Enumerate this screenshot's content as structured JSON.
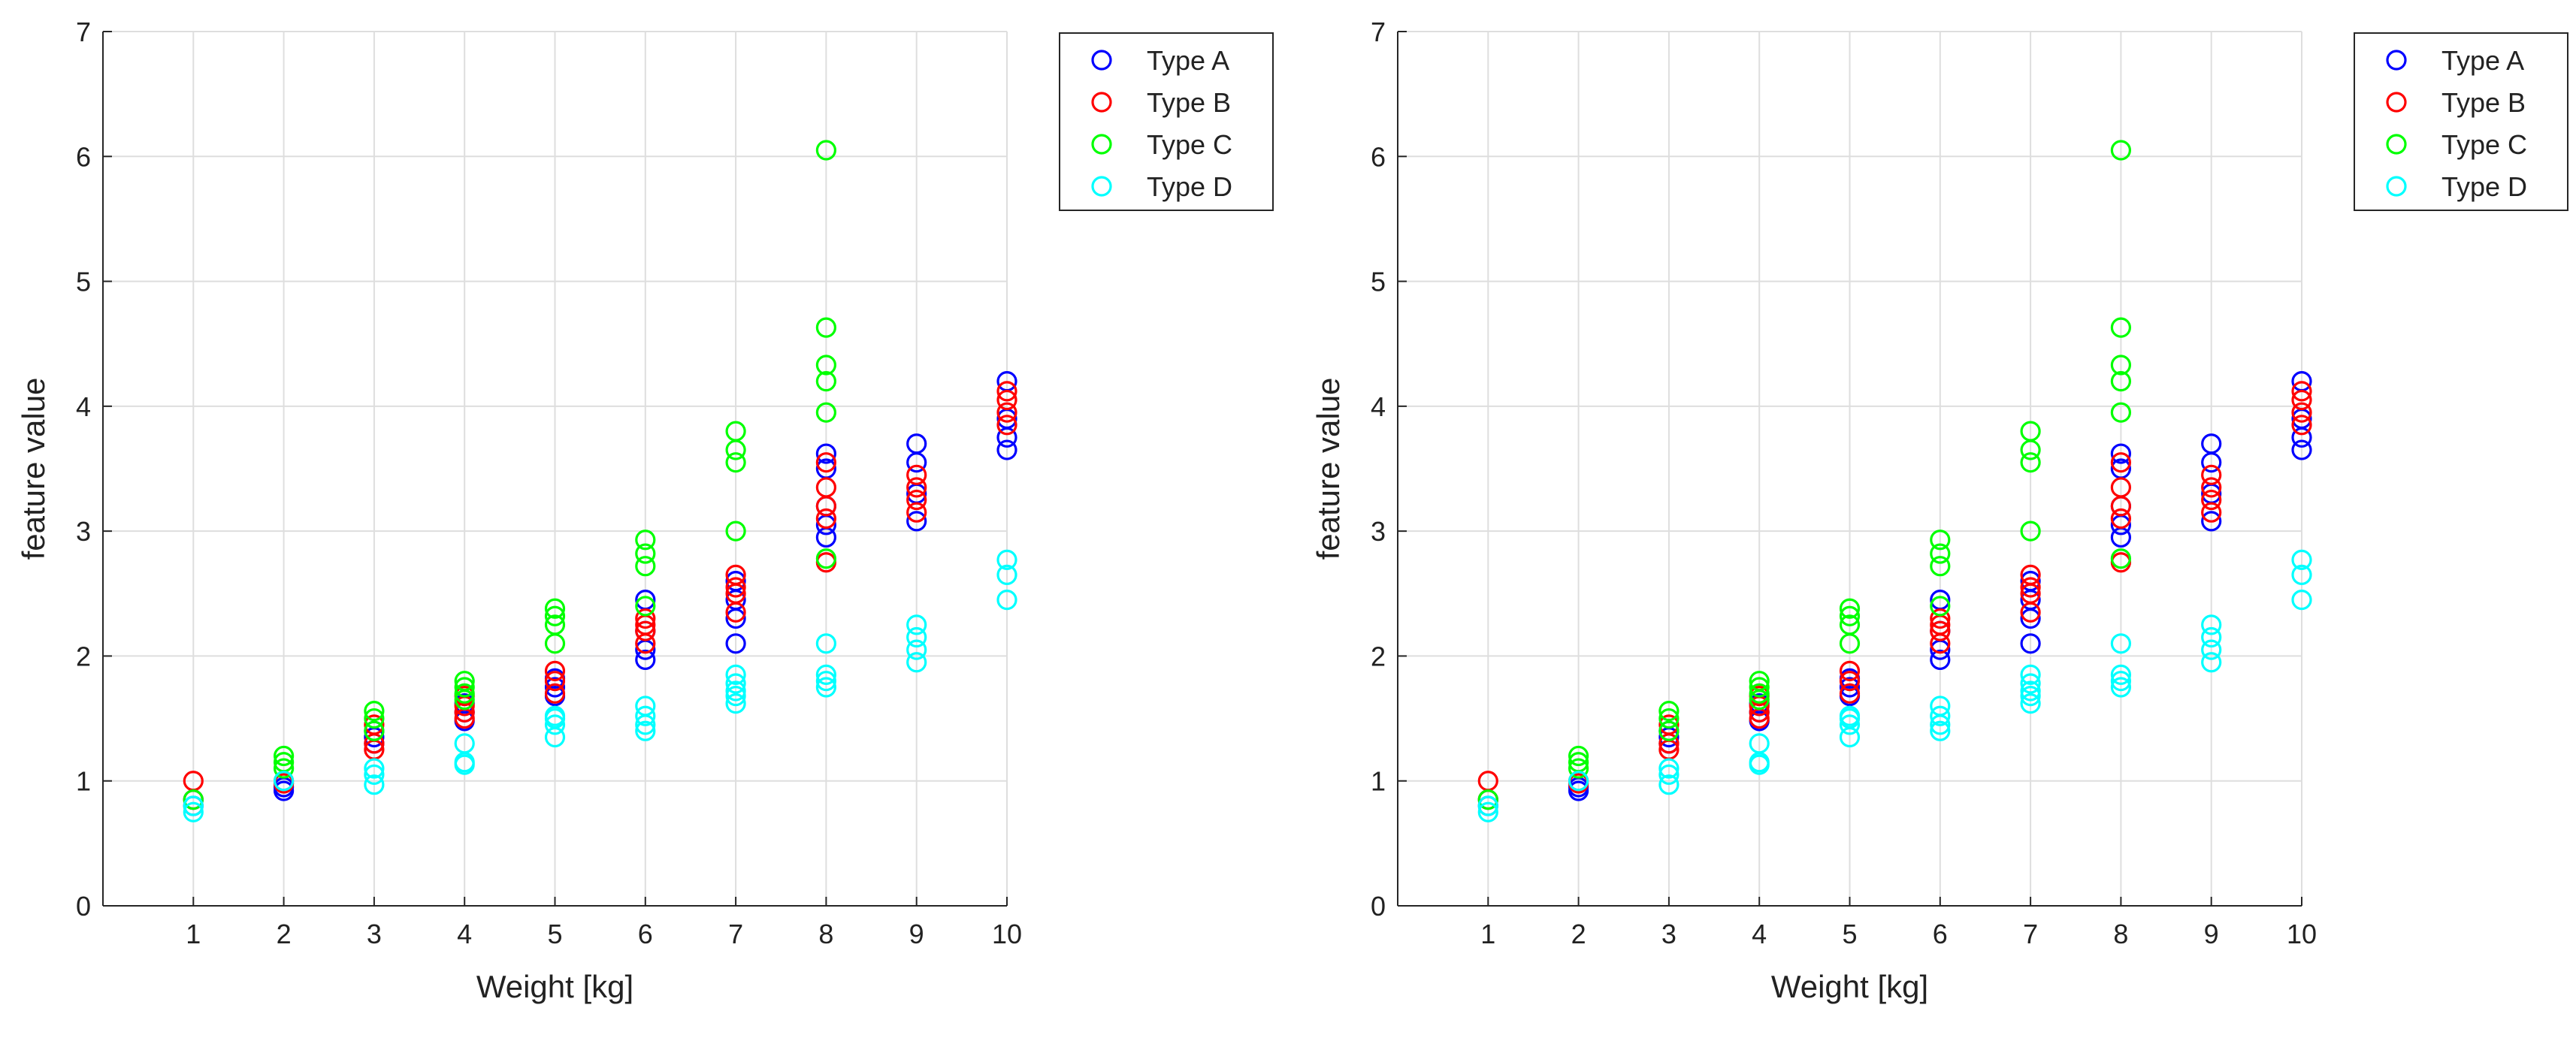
{
  "chart_data": [
    {
      "type": "scatter",
      "title": "",
      "xlabel": "Weight [kg]",
      "ylabel": "feature value",
      "xlim": [
        0,
        10
      ],
      "ylim": [
        0,
        7
      ],
      "xticks": [
        "1",
        "2",
        "3",
        "4",
        "5",
        "6",
        "7",
        "8",
        "9",
        "10"
      ],
      "yticks": [
        "0",
        "1",
        "2",
        "3",
        "4",
        "5",
        "6",
        "7"
      ],
      "grid": true,
      "legend_position": "top-right",
      "marker": "open-circle",
      "series": [
        {
          "name": "Type A",
          "color": "#0000ff",
          "x": [
            1,
            1,
            2,
            2,
            3,
            3,
            3,
            4,
            4,
            4,
            5,
            5,
            5,
            6,
            6,
            6,
            6,
            7,
            7,
            7,
            7,
            8,
            8,
            8,
            8,
            8,
            9,
            9,
            9,
            9,
            10,
            10,
            10,
            10
          ],
          "y": [
            0.85,
            0.8,
            0.95,
            0.92,
            1.3,
            1.35,
            1.4,
            1.48,
            1.55,
            1.62,
            1.68,
            1.75,
            1.82,
            1.97,
            2.05,
            2.2,
            2.45,
            2.1,
            2.3,
            2.45,
            2.6,
            2.95,
            3.05,
            3.2,
            3.5,
            3.62,
            3.08,
            3.3,
            3.55,
            3.7,
            3.65,
            3.75,
            3.9,
            4.2
          ]
        },
        {
          "name": "Type B",
          "color": "#ff0000",
          "x": [
            1,
            1,
            2,
            2,
            3,
            3,
            3,
            4,
            4,
            4,
            4,
            5,
            5,
            5,
            6,
            6,
            6,
            6,
            7,
            7,
            7,
            7,
            8,
            8,
            8,
            8,
            8,
            9,
            9,
            9,
            9,
            10,
            10,
            10,
            10
          ],
          "y": [
            1.0,
            0.85,
            1.0,
            0.98,
            1.25,
            1.3,
            1.45,
            1.5,
            1.55,
            1.6,
            1.68,
            1.7,
            1.8,
            1.88,
            2.1,
            2.2,
            2.25,
            2.3,
            2.35,
            2.5,
            2.55,
            2.65,
            2.75,
            3.1,
            3.2,
            3.35,
            3.55,
            3.15,
            3.25,
            3.35,
            3.45,
            3.85,
            3.95,
            4.05,
            4.12
          ]
        },
        {
          "name": "Type C",
          "color": "#00ff00",
          "x": [
            1,
            2,
            2,
            2,
            3,
            3,
            3,
            4,
            4,
            4,
            4,
            5,
            5,
            5,
            5,
            6,
            6,
            6,
            6,
            7,
            7,
            7,
            7,
            8,
            8,
            8,
            8,
            8,
            8
          ],
          "y": [
            0.85,
            1.1,
            1.15,
            1.2,
            1.4,
            1.5,
            1.56,
            1.65,
            1.7,
            1.75,
            1.8,
            2.1,
            2.25,
            2.32,
            2.38,
            2.4,
            2.72,
            2.82,
            2.93,
            3.0,
            3.55,
            3.65,
            3.8,
            3.95,
            4.2,
            4.33,
            4.63,
            6.05,
            2.78
          ]
        },
        {
          "name": "Type D",
          "color": "#00ffff",
          "x": [
            1,
            1,
            2,
            3,
            3,
            3,
            4,
            4,
            4,
            5,
            5,
            5,
            5,
            6,
            6,
            6,
            6,
            7,
            7,
            7,
            7,
            7,
            8,
            8,
            8,
            8,
            9,
            9,
            9,
            9,
            10,
            10,
            10
          ],
          "y": [
            0.75,
            0.8,
            1.0,
            0.97,
            1.05,
            1.1,
            1.13,
            1.15,
            1.3,
            1.35,
            1.45,
            1.5,
            1.52,
            1.4,
            1.45,
            1.52,
            1.6,
            1.62,
            1.68,
            1.72,
            1.78,
            1.85,
            1.75,
            1.8,
            1.85,
            2.1,
            1.95,
            2.05,
            2.15,
            2.25,
            2.45,
            2.65,
            2.77
          ]
        }
      ]
    },
    {
      "type": "scatter",
      "title": "",
      "xlabel": "Weight [kg]",
      "ylabel": "feature value",
      "xlim": [
        0,
        10
      ],
      "ylim": [
        0,
        7
      ],
      "xticks": [
        "1",
        "2",
        "3",
        "4",
        "5",
        "6",
        "7",
        "8",
        "9",
        "10"
      ],
      "yticks": [
        "0",
        "1",
        "2",
        "3",
        "4",
        "5",
        "6",
        "7"
      ],
      "grid": true,
      "legend_position": "top-right",
      "marker": "open-circle",
      "series": [
        {
          "name": "Type A",
          "color": "#0000ff",
          "x": [
            1,
            1,
            2,
            2,
            3,
            3,
            3,
            4,
            4,
            4,
            5,
            5,
            5,
            6,
            6,
            6,
            6,
            7,
            7,
            7,
            7,
            8,
            8,
            8,
            8,
            8,
            9,
            9,
            9,
            9,
            10,
            10,
            10,
            10
          ],
          "y": [
            0.85,
            0.8,
            0.95,
            0.92,
            1.3,
            1.35,
            1.4,
            1.48,
            1.55,
            1.62,
            1.68,
            1.75,
            1.82,
            1.97,
            2.05,
            2.2,
            2.45,
            2.1,
            2.3,
            2.45,
            2.6,
            2.95,
            3.05,
            3.2,
            3.5,
            3.62,
            3.08,
            3.3,
            3.55,
            3.7,
            3.65,
            3.75,
            3.9,
            4.2
          ]
        },
        {
          "name": "Type B",
          "color": "#ff0000",
          "x": [
            1,
            1,
            2,
            2,
            3,
            3,
            3,
            4,
            4,
            4,
            4,
            5,
            5,
            5,
            6,
            6,
            6,
            6,
            7,
            7,
            7,
            7,
            8,
            8,
            8,
            8,
            8,
            9,
            9,
            9,
            9,
            10,
            10,
            10,
            10
          ],
          "y": [
            1.0,
            0.85,
            1.0,
            0.98,
            1.25,
            1.3,
            1.45,
            1.5,
            1.55,
            1.6,
            1.68,
            1.7,
            1.8,
            1.88,
            2.1,
            2.2,
            2.25,
            2.3,
            2.35,
            2.5,
            2.55,
            2.65,
            2.75,
            3.1,
            3.2,
            3.35,
            3.55,
            3.15,
            3.25,
            3.35,
            3.45,
            3.85,
            3.95,
            4.05,
            4.12
          ]
        },
        {
          "name": "Type C",
          "color": "#00ff00",
          "x": [
            1,
            2,
            2,
            2,
            3,
            3,
            3,
            4,
            4,
            4,
            4,
            5,
            5,
            5,
            5,
            6,
            6,
            6,
            6,
            7,
            7,
            7,
            7,
            8,
            8,
            8,
            8,
            8,
            8
          ],
          "y": [
            0.85,
            1.1,
            1.15,
            1.2,
            1.4,
            1.5,
            1.56,
            1.65,
            1.7,
            1.75,
            1.8,
            2.1,
            2.25,
            2.32,
            2.38,
            2.4,
            2.72,
            2.82,
            2.93,
            3.0,
            3.55,
            3.65,
            3.8,
            3.95,
            4.2,
            4.33,
            4.63,
            6.05,
            2.78
          ]
        },
        {
          "name": "Type D",
          "color": "#00ffff",
          "x": [
            1,
            1,
            2,
            3,
            3,
            3,
            4,
            4,
            4,
            5,
            5,
            5,
            5,
            6,
            6,
            6,
            6,
            7,
            7,
            7,
            7,
            7,
            8,
            8,
            8,
            8,
            9,
            9,
            9,
            9,
            10,
            10,
            10
          ],
          "y": [
            0.75,
            0.8,
            1.0,
            0.97,
            1.05,
            1.1,
            1.13,
            1.15,
            1.3,
            1.35,
            1.45,
            1.5,
            1.52,
            1.4,
            1.45,
            1.52,
            1.6,
            1.62,
            1.68,
            1.72,
            1.78,
            1.85,
            1.75,
            1.8,
            1.85,
            2.1,
            1.95,
            2.05,
            2.15,
            2.25,
            2.45,
            2.65,
            2.77
          ]
        }
      ]
    }
  ]
}
